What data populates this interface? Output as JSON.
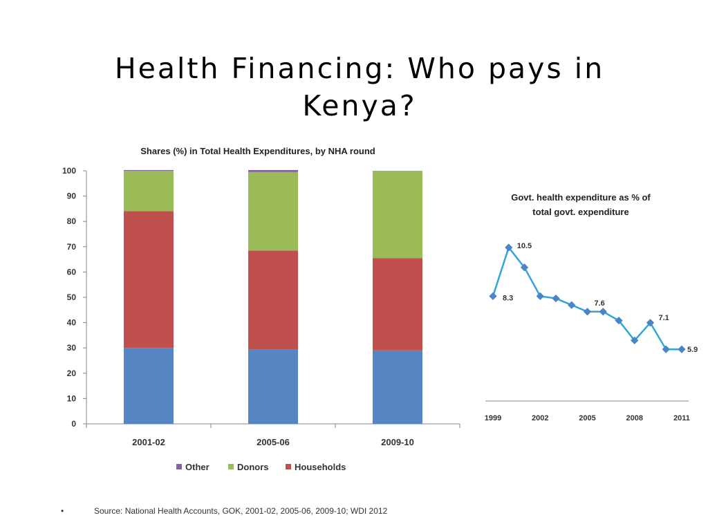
{
  "slide": {
    "title_line1": "Health Financing: Who pays in",
    "title_line2": "Kenya?",
    "bullet": "•",
    "source": "Source: National Health Accounts, GOK, 2001-02, 2005-06, 2009-10; WDI 2012"
  },
  "chart_data": [
    {
      "type": "bar",
      "stacked": true,
      "title": "Shares (%) in Total Health Expenditures, by NHA round",
      "categories": [
        "2001-02",
        "2005-06",
        "2009-10"
      ],
      "series": [
        {
          "name": "",
          "color": "#5586C2",
          "values": [
            30,
            29.5,
            29
          ]
        },
        {
          "name": "Households",
          "color": "#C0504D",
          "values": [
            54,
            39,
            36.5
          ]
        },
        {
          "name": "Donors",
          "color": "#9BBB59",
          "values": [
            16,
            31,
            34.5
          ]
        },
        {
          "name": "Other",
          "color": "#8064A2",
          "values": [
            0.3,
            0.8,
            0
          ]
        }
      ],
      "legend": [
        "Other",
        "Donors",
        "Households"
      ],
      "legend_position": "bottom",
      "ylim": [
        0,
        100
      ],
      "yticks": [
        0,
        10,
        20,
        30,
        40,
        50,
        60,
        70,
        80,
        90,
        100
      ],
      "grid": false
    },
    {
      "type": "line",
      "title_line1": "Govt. health expenditure as % of",
      "title_line2": "total govt. expenditure",
      "color": "#31A5D9",
      "marker_color": "#4A86C5",
      "x": [
        1999,
        2000,
        2001,
        2002,
        2003,
        2004,
        2005,
        2006,
        2007,
        2008,
        2009,
        2010,
        2011
      ],
      "y": [
        8.3,
        10.5,
        9.6,
        8.3,
        8.2,
        7.9,
        7.6,
        7.6,
        7.2,
        6.3,
        7.1,
        5.9,
        5.9
      ],
      "xticks": [
        1999,
        2002,
        2005,
        2008,
        2011
      ],
      "data_labels": [
        {
          "index": 0,
          "text": "8.3"
        },
        {
          "index": 1,
          "text": "10.5"
        },
        {
          "index": 6,
          "text": "7.6"
        },
        {
          "index": 10,
          "text": "7.1"
        },
        {
          "index": 12,
          "text": "5.9"
        }
      ],
      "grid": false
    }
  ]
}
